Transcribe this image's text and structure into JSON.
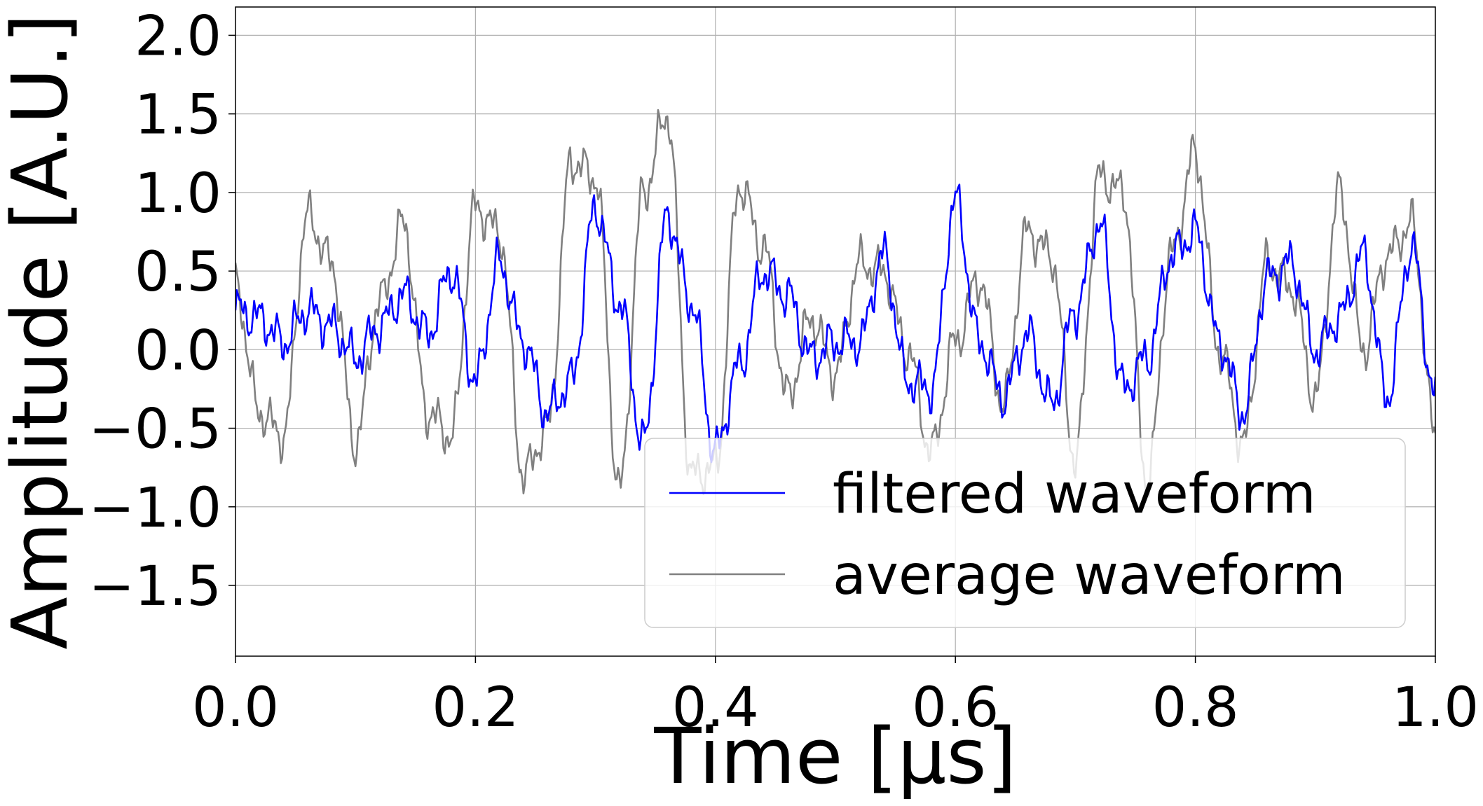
{
  "chart_data": {
    "type": "line",
    "title": "",
    "xlabel": "Time [μs]",
    "ylabel": "Amplitude [A.U.]",
    "xlim": [
      0.0,
      1.0
    ],
    "ylim": [
      -1.95,
      2.18
    ],
    "xticks": [
      "0.0",
      "0.2",
      "0.4",
      "0.6",
      "0.8",
      "1.0"
    ],
    "yticks": [
      "−1.5",
      "−1.0",
      "−0.5",
      "0.0",
      "0.5",
      "1.0",
      "1.5",
      "2.0"
    ],
    "grid": true,
    "legend_position": "lower-right",
    "series": [
      {
        "name": "filtered waveform",
        "color": "#0000ff",
        "x": [
          0.0,
          0.02,
          0.04,
          0.06,
          0.08,
          0.1,
          0.12,
          0.14,
          0.16,
          0.18,
          0.2,
          0.22,
          0.24,
          0.26,
          0.28,
          0.3,
          0.32,
          0.34,
          0.36,
          0.38,
          0.4,
          0.42,
          0.44,
          0.46,
          0.48,
          0.5,
          0.52,
          0.54,
          0.56,
          0.58,
          0.6,
          0.62,
          0.64,
          0.66,
          0.68,
          0.7,
          0.72,
          0.74,
          0.76,
          0.78,
          0.8,
          0.82,
          0.84,
          0.86,
          0.88,
          0.9,
          0.92,
          0.94,
          0.96,
          0.98,
          1.0
        ],
        "values": [
          0.25,
          0.2,
          0.05,
          0.25,
          0.15,
          -0.05,
          0.15,
          0.35,
          0.1,
          0.5,
          -0.2,
          0.55,
          0.05,
          -0.4,
          -0.2,
          0.9,
          0.3,
          -0.6,
          0.85,
          0.3,
          -0.65,
          -0.1,
          0.5,
          0.35,
          -0.05,
          0.05,
          0.05,
          0.6,
          -0.2,
          -0.25,
          0.95,
          0.05,
          -0.3,
          0.1,
          -0.35,
          0.25,
          0.8,
          -0.25,
          -0.05,
          0.6,
          0.75,
          0.05,
          -0.4,
          0.45,
          0.55,
          0.0,
          0.2,
          0.6,
          -0.3,
          0.65,
          -0.3
        ]
      },
      {
        "name": "average waveform",
        "color": "#808080",
        "x": [
          0.0,
          0.02,
          0.04,
          0.06,
          0.08,
          0.1,
          0.12,
          0.14,
          0.16,
          0.18,
          0.2,
          0.22,
          0.24,
          0.26,
          0.28,
          0.3,
          0.32,
          0.34,
          0.36,
          0.38,
          0.4,
          0.42,
          0.44,
          0.46,
          0.48,
          0.5,
          0.52,
          0.54,
          0.56,
          0.58,
          0.6,
          0.62,
          0.64,
          0.66,
          0.68,
          0.7,
          0.72,
          0.74,
          0.76,
          0.78,
          0.8,
          0.82,
          0.84,
          0.86,
          0.88,
          0.9,
          0.92,
          0.94,
          0.96,
          0.98,
          1.0
        ],
        "values": [
          0.4,
          -0.4,
          -0.55,
          0.85,
          0.55,
          -0.6,
          0.3,
          0.8,
          -0.4,
          -0.55,
          0.9,
          0.75,
          -0.8,
          -0.5,
          1.2,
          1.1,
          -0.9,
          1.0,
          1.5,
          -0.8,
          -0.75,
          1.05,
          0.65,
          -0.3,
          0.2,
          -0.15,
          0.55,
          0.5,
          0.0,
          -0.65,
          0.05,
          0.45,
          -0.35,
          0.75,
          0.6,
          -0.7,
          1.1,
          1.0,
          -0.85,
          0.6,
          1.25,
          0.0,
          -0.6,
          0.55,
          0.4,
          -0.3,
          1.0,
          0.0,
          0.6,
          0.8,
          -0.55
        ]
      }
    ]
  }
}
